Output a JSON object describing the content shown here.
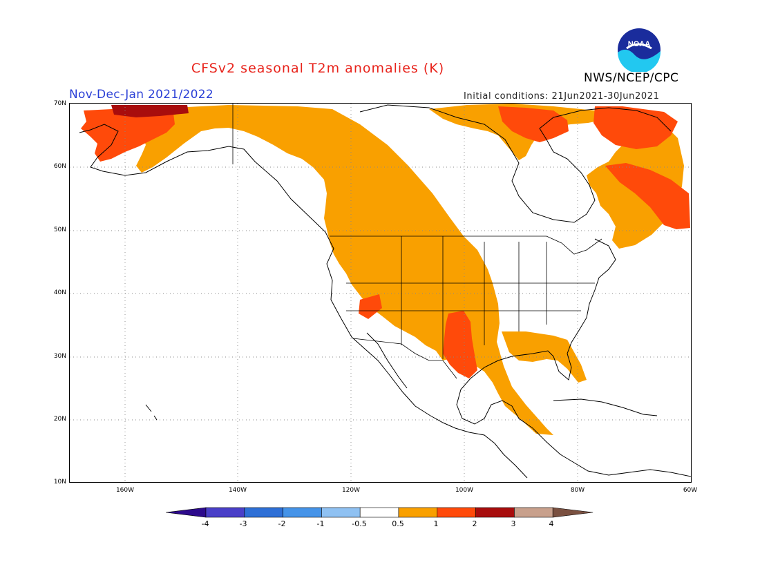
{
  "title": "CFSv2 seasonal T2m anomalies (K)",
  "agency": "NWS/NCEP/CPC",
  "logo_text": "NOAA",
  "period": "Nov-Dec-Jan 2021/2022",
  "initial_conditions": "Initial conditions: 21Jun2021-30Jun2021",
  "lat_labels": [
    "70N",
    "60N",
    "50N",
    "40N",
    "30N",
    "20N",
    "10N"
  ],
  "lon_labels": [
    "160W",
    "140W",
    "120W",
    "100W",
    "80W",
    "60W"
  ],
  "colorbar": {
    "labels": [
      "-4",
      "-3",
      "-2",
      "-1",
      "-0.5",
      "0.5",
      "1",
      "2",
      "3",
      "4"
    ],
    "colors": [
      "#2d0a8c",
      "#4a3fc8",
      "#2e6fd6",
      "#4593e8",
      "#8fc1f2",
      "#ffffff",
      "#f9a000",
      "#ff4a0a",
      "#a80d0d",
      "#c8a08c",
      "#7a5040"
    ]
  },
  "legend_colors": {
    "anom_0_5_to_1": "#f9a000",
    "anom_1_to_2": "#ff4a0a",
    "anom_2_to_3": "#a80d0d"
  }
}
